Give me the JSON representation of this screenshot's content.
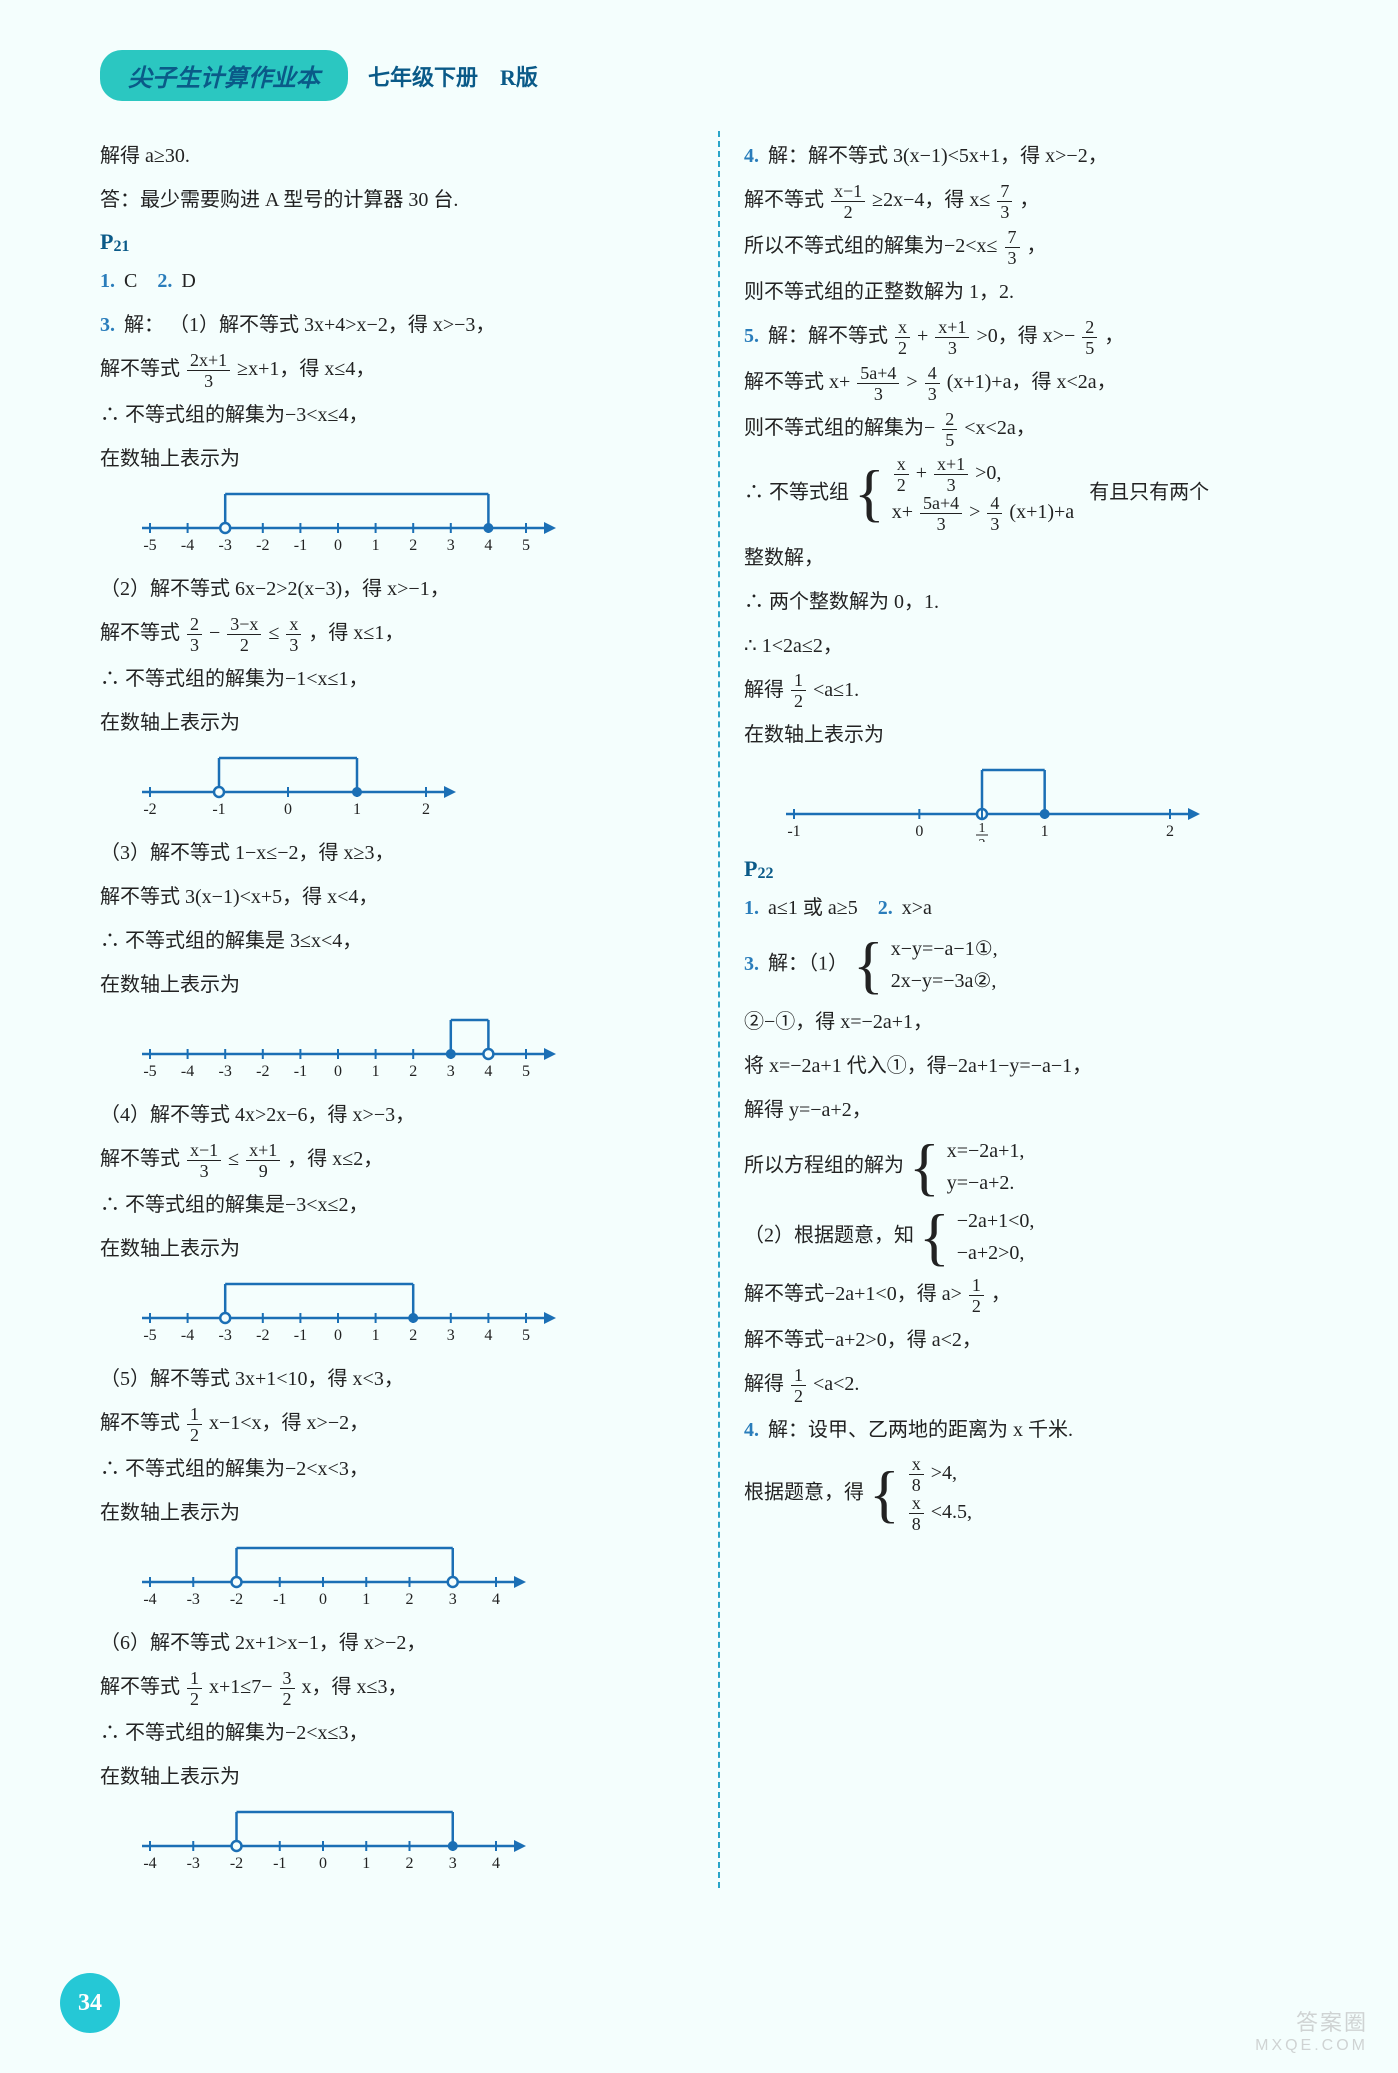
{
  "header": {
    "title": "尖子生计算作业本",
    "subtitle": "七年级下册　R版"
  },
  "pageNumber": "34",
  "watermark": {
    "l1": "答案圈",
    "l2": "MXQE.COM"
  },
  "left": {
    "l1": "解得 a≥30.",
    "l2": "答：最少需要购进 A 型号的计算器 30 台.",
    "p21": "P21",
    "q1": {
      "n": "1.",
      "a": "C"
    },
    "q2": {
      "n": "2.",
      "a": "D"
    },
    "q3n": "3.",
    "q3a": "解：",
    "q3_1a": "（1）解不等式 3x+4>x−2，得 x>−3，",
    "q3_1b_pre": "解不等式",
    "q3_1b_num": "2x+1",
    "q3_1b_den": "3",
    "q3_1b_post": "≥x+1，得 x≤4，",
    "q3_1c": "∴ 不等式组的解集为−3<x≤4，",
    "q3_1d": "在数轴上表示为",
    "q3_2a": "（2）解不等式 6x−2>2(x−3)，得 x>−1，",
    "q3_2b_pre": "解不等式",
    "q3_2b_f1n": "2",
    "q3_2b_f1d": "3",
    "q3_2b_mid": " − ",
    "q3_2b_f2n": "3−x",
    "q3_2b_f2d": "2",
    "q3_2b_mid2": " ≤ ",
    "q3_2b_f3n": "x",
    "q3_2b_f3d": "3",
    "q3_2b_post": "，得 x≤1，",
    "q3_2c": "∴ 不等式组的解集为−1<x≤1，",
    "q3_2d": "在数轴上表示为",
    "q3_3a": "（3）解不等式 1−x≤−2，得 x≥3，",
    "q3_3b": "解不等式 3(x−1)<x+5，得 x<4，",
    "q3_3c": "∴ 不等式组的解集是 3≤x<4，",
    "q3_3d": "在数轴上表示为",
    "q3_4a": "（4）解不等式 4x>2x−6，得 x>−3，",
    "q3_4b_pre": "解不等式",
    "q3_4b_f1n": "x−1",
    "q3_4b_f1d": "3",
    "q3_4b_mid": " ≤ ",
    "q3_4b_f2n": "x+1",
    "q3_4b_f2d": "9",
    "q3_4b_post": "，得 x≤2，",
    "q3_4c": "∴ 不等式组的解集是−3<x≤2，",
    "q3_4d": "在数轴上表示为",
    "q3_5a": "（5）解不等式 3x+1<10，得 x<3，",
    "q3_5b_pre": "解不等式",
    "q3_5b_f1n": "1",
    "q3_5b_f1d": "2",
    "q3_5b_post": "x−1<x，得 x>−2，",
    "q3_5c": "∴ 不等式组的解集为−2<x<3，",
    "q3_5d": "在数轴上表示为",
    "q3_6a": "（6）解不等式 2x+1>x−1，得 x>−2，",
    "q3_6b_pre": "解不等式",
    "q3_6b_f1n": "1",
    "q3_6b_f1d": "2",
    "q3_6b_mid": "x+1≤7−",
    "q3_6b_f2n": "3",
    "q3_6b_f2d": "2",
    "q3_6b_post": "x，得 x≤3，",
    "q3_6c": "∴ 不等式组的解集为−2<x≤3，",
    "q3_6d": "在数轴上表示为"
  },
  "right": {
    "r4a": "解：解不等式 3(x−1)<5x+1，得 x>−2，",
    "r4n": "4.",
    "r4b_pre": "解不等式",
    "r4b_f1n": "x−1",
    "r4b_f1d": "2",
    "r4b_mid": "≥2x−4，得 x≤",
    "r4b_f2n": "7",
    "r4b_f2d": "3",
    "r4b_post": "，",
    "r4c_pre": "所以不等式组的解集为−2<x≤",
    "r4c_fn": "7",
    "r4c_fd": "3",
    "r4c_post": "，",
    "r4d": "则不等式组的正整数解为 1，2.",
    "r5n": "5.",
    "r5a_pre": "解：解不等式",
    "r5a_f1n": "x",
    "r5a_f1d": "2",
    "r5a_mid": "+",
    "r5a_f2n": "x+1",
    "r5a_f2d": "3",
    "r5a_mid2": ">0，得 x>−",
    "r5a_f3n": "2",
    "r5a_f3d": "5",
    "r5a_post": "，",
    "r5b_pre": "解不等式 x+",
    "r5b_f1n": "5a+4",
    "r5b_f1d": "3",
    "r5b_mid": ">",
    "r5b_f2n": "4",
    "r5b_f2d": "3",
    "r5b_post": "(x+1)+a，得 x<2a，",
    "r5c_pre": "则不等式组的解集为−",
    "r5c_fn": "2",
    "r5c_fd": "5",
    "r5c_post": "<x<2a，",
    "r5d_pre": "∴ 不等式组",
    "r5d_row1_f1n": "x",
    "r5d_row1_f1d": "2",
    "r5d_row1_mid": "+",
    "r5d_row1_f2n": "x+1",
    "r5d_row1_f2d": "3",
    "r5d_row1_post": ">0,",
    "r5d_row2_pre": "x+",
    "r5d_row2_f1n": "5a+4",
    "r5d_row2_f1d": "3",
    "r5d_row2_mid": ">",
    "r5d_row2_f2n": "4",
    "r5d_row2_f2d": "3",
    "r5d_row2_post": "(x+1)+a",
    "r5d_tail": "有且只有两个",
    "r5e": "整数解，",
    "r5f": "∴ 两个整数解为 0，1.",
    "r5g": "∴ 1<2a≤2，",
    "r5h_pre": "解得",
    "r5h_fn": "1",
    "r5h_fd": "2",
    "r5h_post": "<a≤1.",
    "r5i": "在数轴上表示为",
    "p22": "P22",
    "p22_q1n": "1.",
    "p22_q1a": "a≤1 或 a≥5",
    "p22_q2n": "2.",
    "p22_q2a": "x>a",
    "p22_q3n": "3.",
    "p22_q3a": "解：（1）",
    "p22_q3_row1": "x−y=−a−1①,",
    "p22_q3_row2": "2x−y=−3a②,",
    "p22_q3_b": "②−①，得 x=−2a+1，",
    "p22_q3_c": "将 x=−2a+1 代入①，得−2a+1−y=−a−1，",
    "p22_q3_d": "解得 y=−a+2，",
    "p22_q3_e_pre": "所以方程组的解为",
    "p22_q3_e_row1": "x=−2a+1,",
    "p22_q3_e_row2": "y=−a+2.",
    "p22_q3_2a_pre": "（2）根据题意，知",
    "p22_q3_2a_row1": "−2a+1<0,",
    "p22_q3_2a_row2": "−a+2>0,",
    "p22_q3_2b_pre": "解不等式−2a+1<0，得 a>",
    "p22_q3_2b_fn": "1",
    "p22_q3_2b_fd": "2",
    "p22_q3_2b_post": "，",
    "p22_q3_2c": "解不等式−a+2>0，得 a<2，",
    "p22_q3_2d_pre": "解得",
    "p22_q3_2d_fn": "1",
    "p22_q3_2d_fd": "2",
    "p22_q3_2d_post": "<a<2.",
    "p22_q4n": "4.",
    "p22_q4a": "解：设甲、乙两地的距离为 x 千米.",
    "p22_q4b_pre": "根据题意，得",
    "p22_q4b_row1_fn": "x",
    "p22_q4b_row1_fd": "8",
    "p22_q4b_row1_post": ">4,",
    "p22_q4b_row2_fn": "x",
    "p22_q4b_row2_fd": "8",
    "p22_q4b_row2_post": "<4.5,"
  },
  "numlines": {
    "color": "#1b6fb5",
    "nl1": {
      "min": -5,
      "max": 5,
      "openAt": -3,
      "closedAt": 4,
      "bracketLeft": -3,
      "bracketRight": 4,
      "openLeft": true,
      "openRight": false,
      "ticks": [
        -5,
        -4,
        -3,
        -2,
        -1,
        0,
        1,
        2,
        3,
        4,
        5
      ]
    },
    "nl2": {
      "min": -2,
      "max": 2,
      "openAt": -1,
      "closedAt": 1,
      "bracketLeft": -1,
      "bracketRight": 1,
      "openLeft": true,
      "openRight": false,
      "ticks": [
        -2,
        -1,
        0,
        1,
        2
      ]
    },
    "nl3": {
      "min": -5,
      "max": 5,
      "openAt": 4,
      "closedAt": 3,
      "bracketLeft": 3,
      "bracketRight": 4,
      "openLeft": false,
      "openRight": true,
      "ticks": [
        -5,
        -4,
        -3,
        -2,
        -1,
        0,
        1,
        2,
        3,
        4,
        5
      ]
    },
    "nl4": {
      "min": -5,
      "max": 5,
      "openAt": -3,
      "closedAt": 2,
      "bracketLeft": -3,
      "bracketRight": 2,
      "openLeft": true,
      "openRight": false,
      "ticks": [
        -5,
        -4,
        -3,
        -2,
        -1,
        0,
        1,
        2,
        3,
        4,
        5
      ]
    },
    "nl5": {
      "min": -4,
      "max": 4,
      "openAt": -2,
      "openAt2": 3,
      "bracketLeft": -2,
      "bracketRight": 3,
      "openLeft": true,
      "openRight": true,
      "ticks": [
        -4,
        -3,
        -2,
        -1,
        0,
        1,
        2,
        3,
        4
      ]
    },
    "nl6": {
      "min": -4,
      "max": 4,
      "openAt": -2,
      "closedAt": 3,
      "bracketLeft": -2,
      "bracketRight": 3,
      "openLeft": true,
      "openRight": false,
      "ticks": [
        -4,
        -3,
        -2,
        -1,
        0,
        1,
        2,
        3,
        4
      ]
    },
    "nlR": {
      "min": -1,
      "max": 2,
      "openAt": 0.5,
      "closedAt": 1,
      "bracketLeft": 0.5,
      "bracketRight": 1,
      "openLeft": true,
      "openRight": false,
      "ticks": [
        -1,
        0,
        1,
        2
      ],
      "halfLabel": "1/2"
    }
  }
}
